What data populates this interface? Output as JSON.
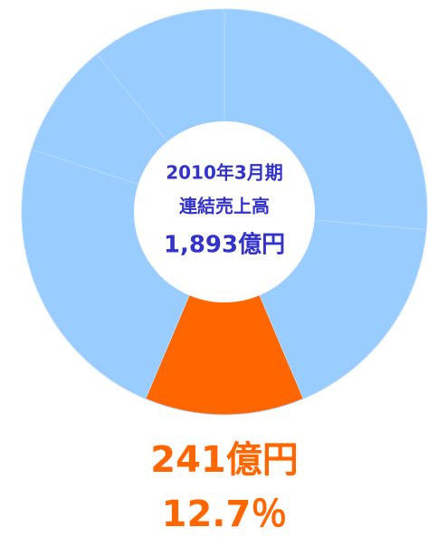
{
  "chart_data": {
    "type": "donut",
    "categories": [
      null,
      null,
      null,
      null,
      null,
      null
    ],
    "values": [
      500,
      326,
      241,
      447,
      174,
      205
    ],
    "value_labels": [
      null,
      null,
      "241億円",
      null,
      null,
      null
    ],
    "percent_labels": [
      null,
      null,
      "12.7％",
      null,
      null,
      null
    ],
    "colors": [
      "#99ccff",
      "#99ccff",
      "#ff6600",
      "#99ccff",
      "#99ccff",
      "#99ccff"
    ],
    "center_text": [
      "2010年3月期",
      "連結売上高",
      "1,893億円"
    ]
  }
}
